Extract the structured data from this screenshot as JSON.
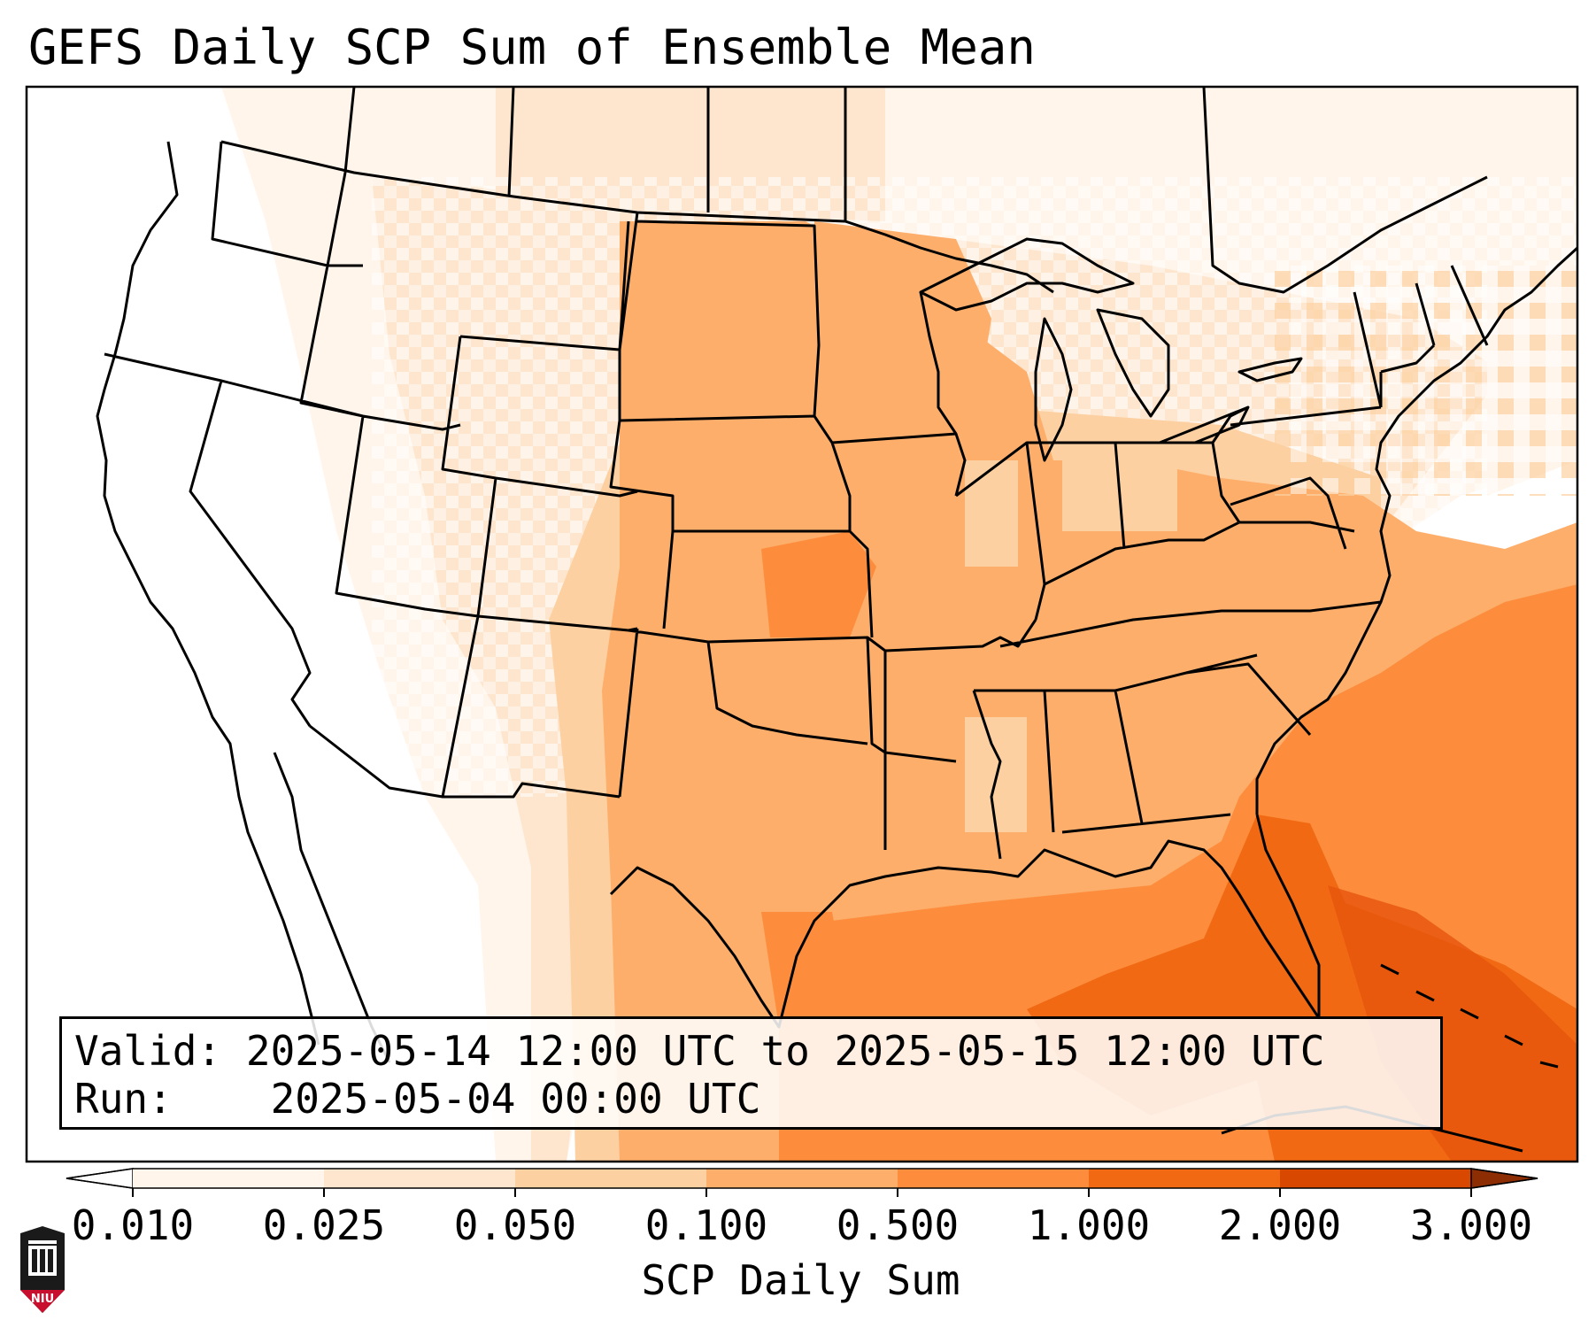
{
  "title": "GEFS Daily SCP Sum of Ensemble Mean",
  "info_box": {
    "valid_label": "Valid:",
    "valid_value": "2025-05-14 12:00 UTC to 2025-05-15 12:00 UTC",
    "run_label": "Run:",
    "run_value": "2025-05-04 00:00 UTC"
  },
  "colorbar": {
    "label": "SCP Daily Sum",
    "ticks": [
      "0.010",
      "0.025",
      "0.050",
      "0.100",
      "0.500",
      "1.000",
      "2.000",
      "3.000"
    ],
    "bins": [
      {
        "from": "0.010",
        "to": "0.025",
        "color": "#fff5eb"
      },
      {
        "from": "0.025",
        "to": "0.050",
        "color": "#fee6ce"
      },
      {
        "from": "0.050",
        "to": "0.100",
        "color": "#fdd0a2"
      },
      {
        "from": "0.100",
        "to": "0.500",
        "color": "#fdae6b"
      },
      {
        "from": "0.500",
        "to": "1.000",
        "color": "#fd8d3c"
      },
      {
        "from": "1.000",
        "to": "2.000",
        "color": "#f16913"
      },
      {
        "from": "2.000",
        "to": "3.000",
        "color": "#d94801"
      }
    ],
    "under_color": "#ffffff",
    "over_color": "#8c2d04",
    "extend": "both"
  },
  "logo": {
    "text": "NIU",
    "colors": {
      "shield": "#1a1a1a",
      "band": "#c8102e"
    }
  }
}
